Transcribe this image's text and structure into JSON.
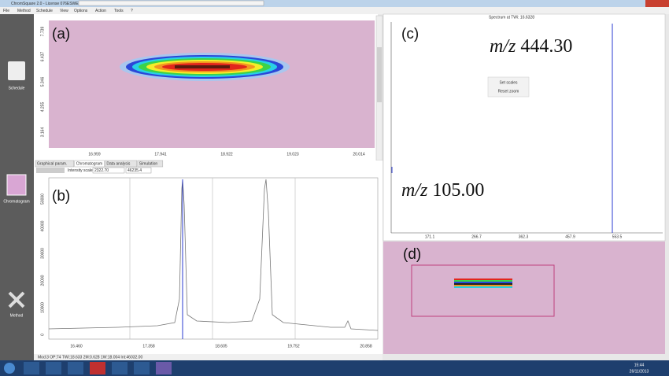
{
  "window_title": "ChromSquare 2.0 - License 076ESWE - Current file: 1228_2D_PDA_red_chili_pepper_MS_product_ion_scan05_Seg(60s).ms",
  "menu": [
    "File",
    "Method",
    "Schedule",
    "View",
    "Options",
    "Action",
    "Tools",
    "?"
  ],
  "sidebar": [
    "Schedule",
    "Chromatogram",
    "Method"
  ],
  "panel_a": {
    "label": "(a)",
    "y_ticks": [
      "7.739",
      "6.437",
      "5.346",
      "4.255",
      "3.164"
    ],
    "x_ticks": [
      "16.959",
      "17.941",
      "18.922",
      "19.023",
      "20.014"
    ]
  },
  "panel_b": {
    "label": "(b)",
    "tabs": [
      "Graphical param.",
      "Chromatogram",
      "Data analysis",
      "Simulation"
    ],
    "intensity_label": "Intensity scale:",
    "intensity_fields": [
      "2322.70",
      "46235.4"
    ],
    "y_ticks": [
      "50000",
      "40000",
      "30000",
      "20000",
      "10000",
      "0"
    ],
    "x_ticks": [
      "16.460",
      "17.358",
      "18.605",
      "19.752",
      "20.858"
    ]
  },
  "status_bar": "Mod:3 OP:74 TWi:18.633 2M:0.628 1W:18.004 Int:46032.00",
  "panel_c": {
    "label": "(c)",
    "spectrum_title": "Spectrum at TWi: 16.6328",
    "mz_high": {
      "prefix": "m/z",
      "value": "444.30"
    },
    "mz_low": {
      "prefix": "m/z",
      "value": "105.00"
    },
    "buttons": [
      "Set scales",
      "Reset zoom"
    ],
    "x_ticks": [
      "171.1",
      "266.7",
      "362.3",
      "457.9",
      "553.5"
    ]
  },
  "panel_d": {
    "label": "(d)"
  },
  "taskbar": {
    "time": "15:44",
    "date": "26/11/2013"
  }
}
